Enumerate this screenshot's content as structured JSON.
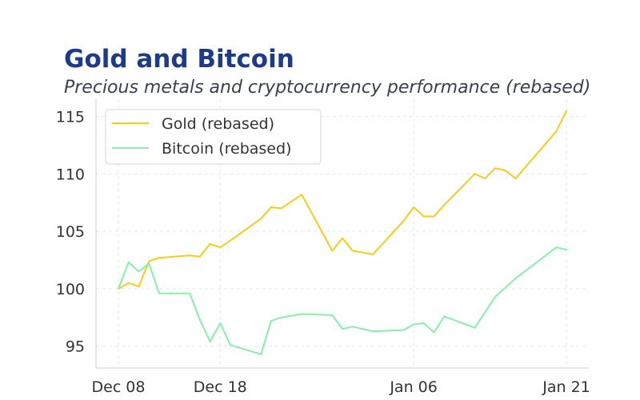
{
  "chart_data": {
    "type": "line",
    "title": "Gold and Bitcoin",
    "subtitle": "Precious metals and cryptocurrency performance (rebased)",
    "xlabel": "",
    "ylabel": "",
    "x_ticks": [
      {
        "label": "Dec 08",
        "day": 0
      },
      {
        "label": "Dec 18",
        "day": 10
      },
      {
        "label": "Jan 06",
        "day": 29
      },
      {
        "label": "Jan 21",
        "day": 44
      }
    ],
    "y_ticks": [
      95,
      100,
      105,
      110,
      115
    ],
    "xlim_days": [
      -2.2,
      46.2
    ],
    "ylim": [
      93.1,
      116.5
    ],
    "grid": true,
    "legend_position": "top-left",
    "series": [
      {
        "name": "Gold (rebased)",
        "color": "#facc15",
        "points": [
          [
            0,
            100.0
          ],
          [
            1,
            100.5
          ],
          [
            2,
            100.2
          ],
          [
            3,
            102.4
          ],
          [
            4,
            102.7
          ],
          [
            7,
            102.9
          ],
          [
            8,
            102.8
          ],
          [
            9,
            103.9
          ],
          [
            10,
            103.6
          ],
          [
            11,
            104.2
          ],
          [
            14,
            106.1
          ],
          [
            15,
            107.1
          ],
          [
            16,
            107.0
          ],
          [
            18,
            108.2
          ],
          [
            21,
            103.3
          ],
          [
            22,
            104.4
          ],
          [
            23,
            103.3
          ],
          [
            25,
            103.0
          ],
          [
            28,
            105.9
          ],
          [
            29,
            107.1
          ],
          [
            30,
            106.3
          ],
          [
            31,
            106.3
          ],
          [
            32,
            107.3
          ],
          [
            35,
            110.0
          ],
          [
            36,
            109.6
          ],
          [
            37,
            110.5
          ],
          [
            38,
            110.3
          ],
          [
            39,
            109.6
          ],
          [
            43,
            113.7
          ],
          [
            44,
            115.5
          ]
        ]
      },
      {
        "name": "Bitcoin (rebased)",
        "color": "#86efac",
        "points": [
          [
            0,
            100.0
          ],
          [
            1,
            102.3
          ],
          [
            2,
            101.5
          ],
          [
            3,
            102.2
          ],
          [
            4,
            99.6
          ],
          [
            7,
            99.6
          ],
          [
            8,
            97.3
          ],
          [
            9,
            95.4
          ],
          [
            10,
            97.0
          ],
          [
            11,
            95.1
          ],
          [
            14,
            94.3
          ],
          [
            15,
            97.2
          ],
          [
            16,
            97.5
          ],
          [
            18,
            97.8
          ],
          [
            21,
            97.7
          ],
          [
            22,
            96.5
          ],
          [
            23,
            96.7
          ],
          [
            25,
            96.3
          ],
          [
            28,
            96.4
          ],
          [
            29,
            96.9
          ],
          [
            30,
            97.0
          ],
          [
            31,
            96.2
          ],
          [
            32,
            97.6
          ],
          [
            35,
            96.6
          ],
          [
            37,
            99.3
          ],
          [
            39,
            100.9
          ],
          [
            43,
            103.6
          ],
          [
            44,
            103.4
          ]
        ]
      }
    ]
  }
}
